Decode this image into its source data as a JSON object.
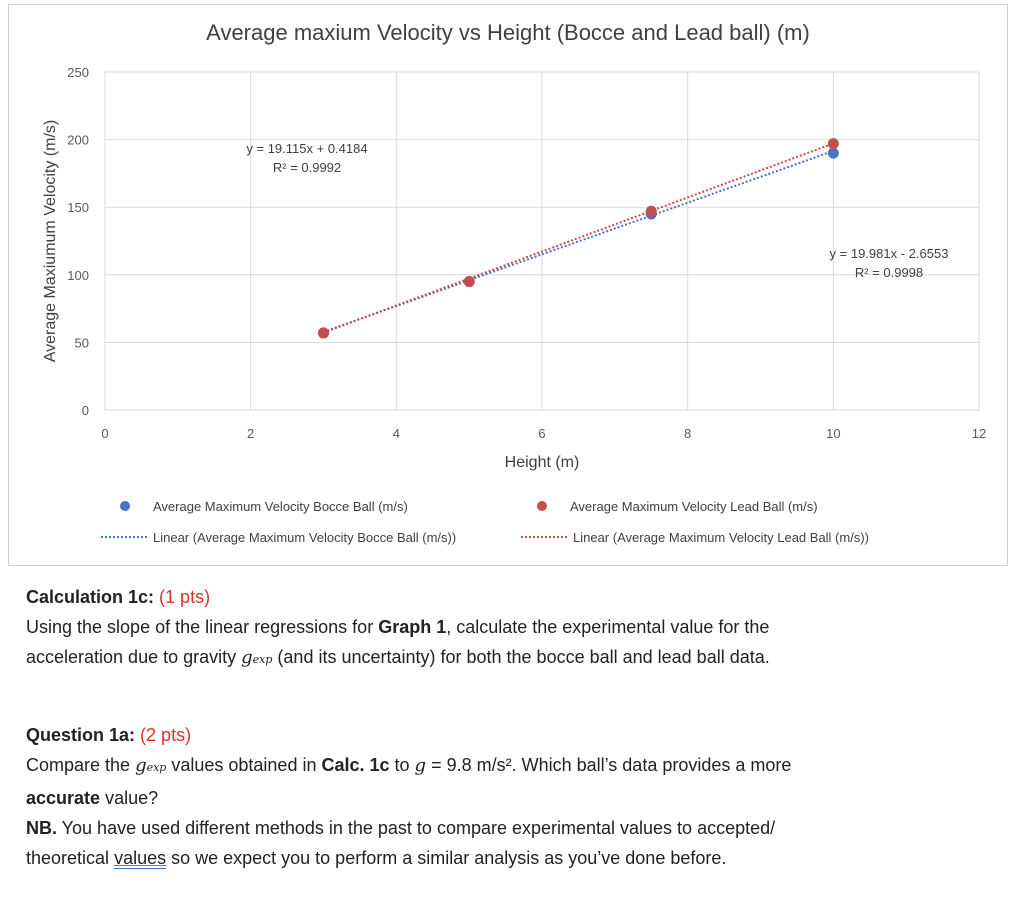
{
  "chart_data": {
    "type": "scatter",
    "title": "Average maxium Velocity vs Height (Bocce and Lead ball) (m)",
    "xlabel": "Height (m)",
    "ylabel": "Average Maxiumum Velocity (m/s)",
    "xlim": [
      0,
      12
    ],
    "ylim": [
      0,
      250
    ],
    "xticks": [
      0,
      2,
      4,
      6,
      8,
      10,
      12
    ],
    "yticks": [
      0,
      50,
      100,
      150,
      200,
      250
    ],
    "grid": true,
    "legend_position": "bottom",
    "series": [
      {
        "name": "Average Maximum Velocity Bocce Ball (m/s)",
        "color": "#4a72c9",
        "x": [
          3,
          5,
          7.5,
          10
        ],
        "y": [
          57,
          95,
          145,
          190
        ],
        "trendline": {
          "name": "Linear (Average Maximum Velocity Bocce Ball (m/s))",
          "slope": 19.115,
          "intercept": 0.4184,
          "equation": "y = 19.115x + 0.4184",
          "r2": "R² = 0.9992"
        }
      },
      {
        "name": "Average Maximum Velocity Lead Ball (m/s)",
        "color": "#c0504d",
        "x": [
          3,
          5,
          7.5,
          10
        ],
        "y": [
          57,
          95,
          147,
          197
        ],
        "trendline": {
          "name": "Linear (Average Maximum Velocity Lead Ball (m/s))",
          "slope": 19.981,
          "intercept": -2.6553,
          "equation": "y = 19.981x - 2.6553",
          "r2": "R² = 0.9998"
        }
      }
    ]
  },
  "calc1c": {
    "heading": "Calculation 1c:",
    "pts": "(1 pts)",
    "line1_a": "Using the slope of the linear regressions for ",
    "line1_b": "Graph 1",
    "line1_c": ", calculate the experimental value for the",
    "line2_a": "acceleration due to gravity ",
    "g": "g",
    "exp": "exp",
    "line2_b": " (and its uncertainty) for both the bocce ball and lead ball data."
  },
  "q1a": {
    "heading": "Question 1a:",
    "pts": "(2 pts)",
    "line1_a": "Compare the ",
    "g": "g",
    "exp": "exp",
    "line1_b": " values obtained in ",
    "line1_c": "Calc. 1c",
    "line1_d": " to ",
    "g2": "g",
    "line1_e": " = 9.8 m/s². Which ball’s data provides a more",
    "line2_a": "accurate",
    "line2_b": " value?",
    "nb_label": "NB.",
    "nb_text": " You have used different methods in the past to compare experimental values to accepted/",
    "line4_a": "theoretical ",
    "line4_b": "values",
    "line4_c": " so we expect you to perform a similar analysis as you’ve done before."
  }
}
